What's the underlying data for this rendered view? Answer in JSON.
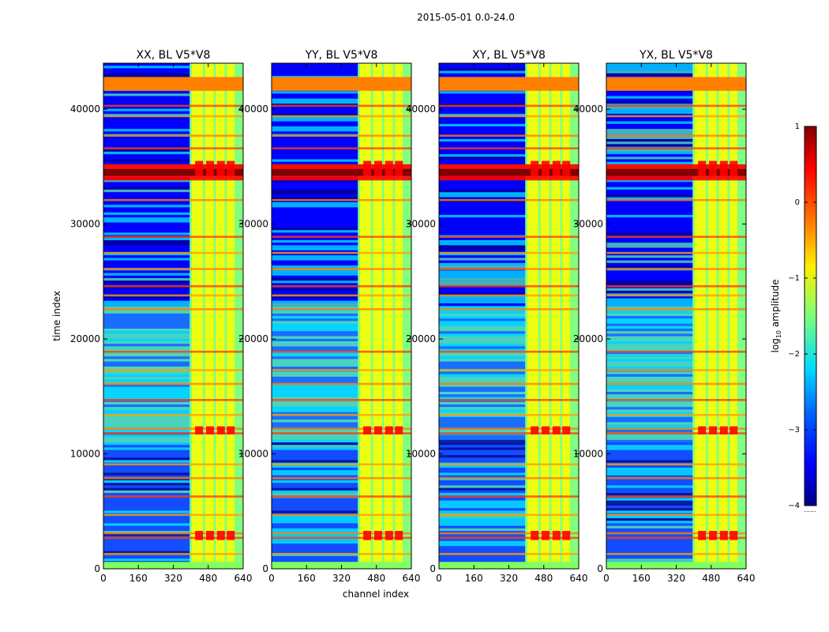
{
  "figure": {
    "suptitle": "2015-05-01 0.0-24.0"
  },
  "colors": {
    "jet": [
      "#000080",
      "#0000ff",
      "#0080ff",
      "#00ffff",
      "#80ff80",
      "#ffff00",
      "#ff8000",
      "#ff0000",
      "#800000"
    ]
  },
  "chart_data": [
    {
      "type": "heatmap",
      "title": "XX, BL V5*V8",
      "xlabel": "channel index",
      "ylabel": "time index",
      "xlim": [
        0,
        640
      ],
      "ylim": [
        0,
        44000
      ],
      "xticks": [
        0,
        160,
        320,
        480,
        640
      ],
      "yticks": [
        0,
        10000,
        20000,
        30000,
        40000
      ]
    },
    {
      "type": "heatmap",
      "title": "YY, BL V5*V8",
      "xlabel": "channel index",
      "ylabel": "",
      "xlim": [
        0,
        640
      ],
      "ylim": [
        0,
        44000
      ],
      "xticks": [
        0,
        160,
        320,
        480,
        640
      ],
      "yticks": [
        0,
        10000,
        20000,
        30000,
        40000
      ]
    },
    {
      "type": "heatmap",
      "title": "XY, BL V5*V8",
      "xlabel": "",
      "ylabel": "",
      "xlim": [
        0,
        640
      ],
      "ylim": [
        0,
        44000
      ],
      "xticks": [
        0,
        160,
        320,
        480,
        640
      ],
      "yticks": [
        0,
        10000,
        20000,
        30000,
        40000
      ]
    },
    {
      "type": "heatmap",
      "title": "YX, BL V5*V8",
      "xlabel": "",
      "ylabel": "",
      "xlim": [
        0,
        640
      ],
      "ylim": [
        0,
        44000
      ],
      "xticks": [
        0,
        160,
        320,
        480,
        640
      ],
      "yticks": [
        0,
        10000,
        20000,
        30000,
        40000
      ]
    }
  ],
  "colorbar": {
    "label": "log10 amplitude",
    "label_base": "log",
    "label_sub": "10",
    "label_rest": " amplitude",
    "range": [
      -4,
      1
    ],
    "ticks": [
      "1",
      "0",
      "−1",
      "−2",
      "−3",
      "−4"
    ]
  }
}
